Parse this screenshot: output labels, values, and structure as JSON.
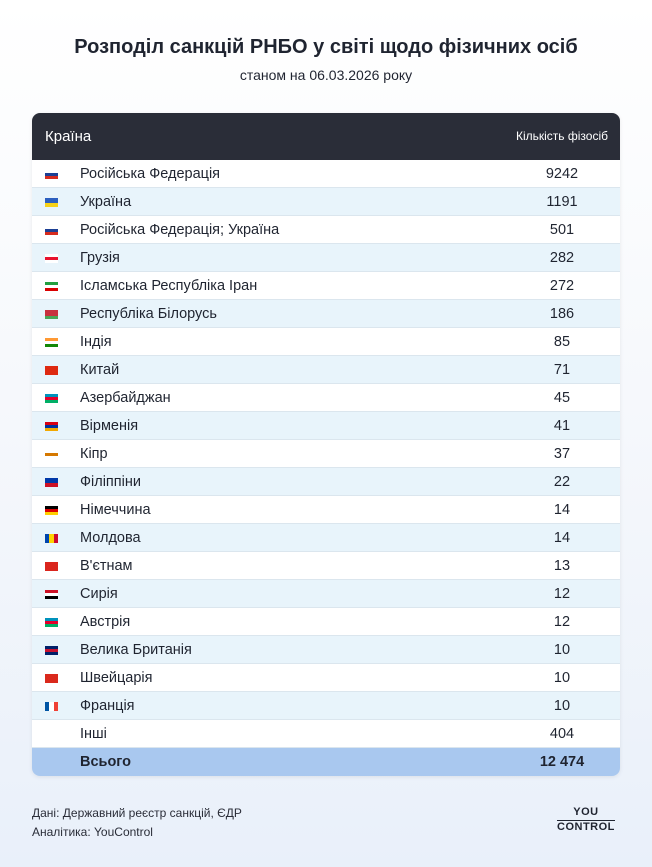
{
  "title": "Розподіл санкцій РНБО у світі щодо фізичних осіб",
  "subtitle": "станом на 06.03.2026 року",
  "chart_data": {
    "type": "table",
    "columns": [
      "Країна",
      "Кількість фізосіб"
    ],
    "rows": [
      {
        "country": "Російська Федерація",
        "value": "9242",
        "flag": [
          "#ffffff",
          "#1c3f94",
          "#d52b1e"
        ]
      },
      {
        "country": "Україна",
        "value": "1191",
        "flag": [
          "#2c5fbf",
          "#f7d117"
        ]
      },
      {
        "country": "Російська Федерація; Україна",
        "value": "501",
        "flag": [
          "#ffffff",
          "#1c3f94",
          "#d52b1e"
        ]
      },
      {
        "country": "Грузія",
        "value": "282",
        "flag": [
          "#ffffff",
          "#e8112d",
          "#ffffff"
        ]
      },
      {
        "country": "Ісламська Республіка Іран",
        "value": "272",
        "flag": [
          "#239f40",
          "#ffffff",
          "#da0000"
        ]
      },
      {
        "country": "Республіка Білорусь",
        "value": "186",
        "flag": [
          "#c8313e",
          "#c8313e",
          "#4aa657"
        ]
      },
      {
        "country": "Індія",
        "value": "85",
        "flag": [
          "#ff9933",
          "#ffffff",
          "#138808"
        ]
      },
      {
        "country": "Китай",
        "value": "71",
        "flag": [
          "#de2910",
          "#de2910"
        ]
      },
      {
        "country": "Азербайджан",
        "value": "45",
        "flag": [
          "#0092bc",
          "#e4002b",
          "#00af66"
        ]
      },
      {
        "country": "Вірменія",
        "value": "41",
        "flag": [
          "#d90012",
          "#0033a0",
          "#f2a800"
        ]
      },
      {
        "country": "Кіпр",
        "value": "37",
        "flag": [
          "#ffffff",
          "#d57800",
          "#ffffff"
        ]
      },
      {
        "country": "Філіппіни",
        "value": "22",
        "flag": [
          "#0038a8",
          "#ce1126"
        ]
      },
      {
        "country": "Німеччина",
        "value": "14",
        "flag": [
          "#000000",
          "#dd0000",
          "#ffce00"
        ]
      },
      {
        "country": "Молдова",
        "value": "14",
        "flag": [
          "#0046ae",
          "#ffd200",
          "#cc092f"
        ],
        "vertical": true
      },
      {
        "country": "В'єтнам",
        "value": "13",
        "flag": [
          "#da251d",
          "#da251d"
        ]
      },
      {
        "country": "Сирія",
        "value": "12",
        "flag": [
          "#ce1126",
          "#ffffff",
          "#000000"
        ]
      },
      {
        "country": "Австрія",
        "value": "12",
        "flag": [
          "#0092bc",
          "#e4002b",
          "#00af66"
        ]
      },
      {
        "country": "Велика Британія",
        "value": "10",
        "flag": [
          "#012169",
          "#c8102e",
          "#012169"
        ]
      },
      {
        "country": "Швейцарія",
        "value": "10",
        "flag": [
          "#da291c",
          "#da291c"
        ]
      },
      {
        "country": "Франція",
        "value": "10",
        "flag": [
          "#0055a4",
          "#ffffff",
          "#ef4135"
        ],
        "vertical": true
      },
      {
        "country": "Інші",
        "value": "404",
        "flag": []
      }
    ],
    "total": {
      "label": "Всього",
      "value": "12 474"
    }
  },
  "footer": {
    "source": "Дані: Державний реєстр санкцій, ЄДР",
    "analytics": "Аналітика: YouControl"
  },
  "logo": {
    "top": "YOU",
    "bottom": "CONTROL"
  }
}
